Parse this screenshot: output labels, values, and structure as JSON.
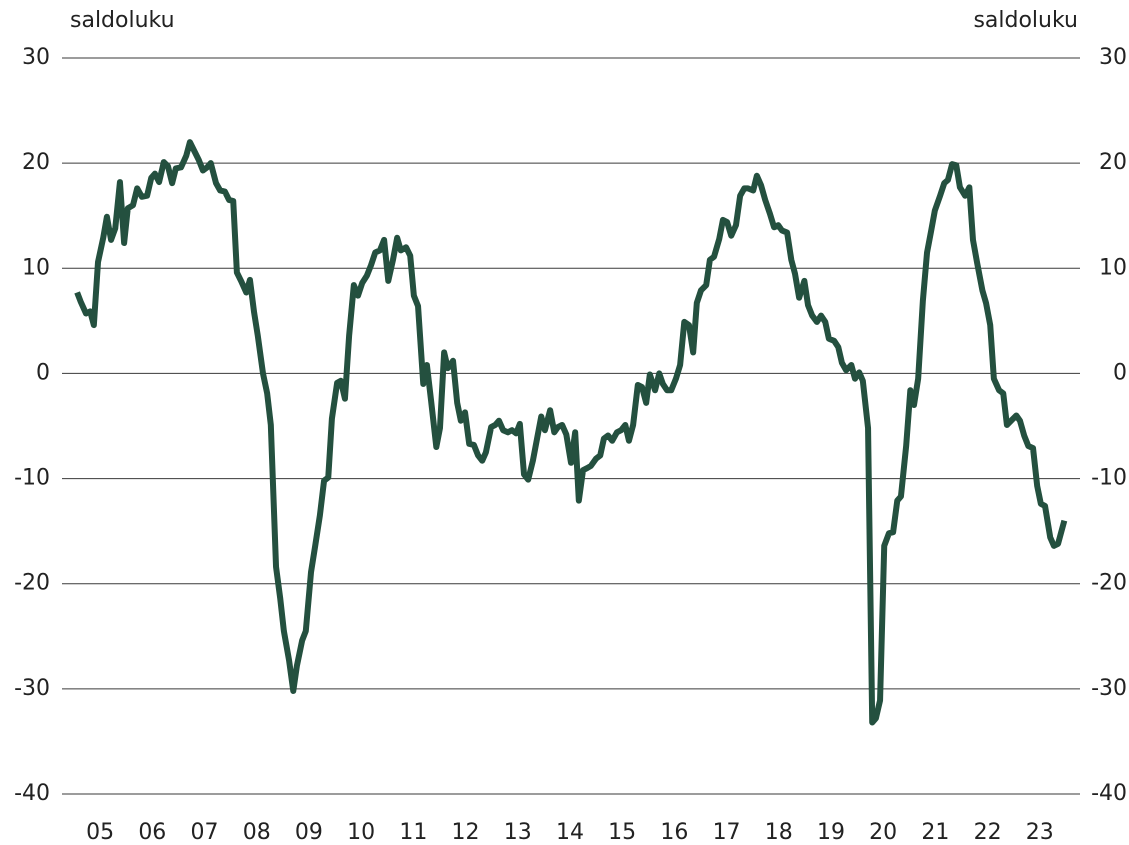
{
  "chart_data": {
    "type": "line",
    "y_label": "saldoluku",
    "y2_label": "saldoluku",
    "color": "#24503f",
    "ylim": [
      -40,
      30
    ],
    "yticks": [
      30,
      20,
      10,
      0,
      -10,
      -20,
      -30,
      -40
    ],
    "y2lim": [
      -40,
      30
    ],
    "y2ticks": [
      30,
      20,
      10,
      0,
      -10,
      -20,
      -30,
      -40
    ],
    "grid": true,
    "xlim": [
      2004.77,
      2024.27
    ],
    "xticks": [
      {
        "value": 2005.5,
        "label": "05"
      },
      {
        "value": 2006.5,
        "label": "06"
      },
      {
        "value": 2007.5,
        "label": "07"
      },
      {
        "value": 2008.5,
        "label": "08"
      },
      {
        "value": 2009.5,
        "label": "09"
      },
      {
        "value": 2010.5,
        "label": "10"
      },
      {
        "value": 2011.5,
        "label": "11"
      },
      {
        "value": 2012.5,
        "label": "12"
      },
      {
        "value": 2013.5,
        "label": "13"
      },
      {
        "value": 2014.5,
        "label": "14"
      },
      {
        "value": 2015.5,
        "label": "15"
      },
      {
        "value": 2016.5,
        "label": "16"
      },
      {
        "value": 2017.5,
        "label": "17"
      },
      {
        "value": 2018.5,
        "label": "18"
      },
      {
        "value": 2019.5,
        "label": "19"
      },
      {
        "value": 2020.5,
        "label": "20"
      },
      {
        "value": 2021.5,
        "label": "21"
      },
      {
        "value": 2022.5,
        "label": "22"
      },
      {
        "value": 2023.5,
        "label": "23"
      }
    ],
    "x": [
      2005.06,
      2005.13,
      2005.23,
      2005.31,
      2005.38,
      2005.46,
      2005.56,
      2005.63,
      2005.71,
      2005.79,
      2005.88,
      2005.96,
      2006.03,
      2006.13,
      2006.21,
      2006.3,
      2006.4,
      2006.48,
      2006.55,
      2006.63,
      2006.72,
      2006.8,
      2006.88,
      2006.95,
      2007.05,
      2007.15,
      2007.22,
      2007.32,
      2007.39,
      2007.47,
      2007.55,
      2007.62,
      2007.72,
      2007.8,
      2007.89,
      2007.97,
      2008.05,
      2008.12,
      2008.2,
      2008.3,
      2008.37,
      2008.45,
      2008.52,
      2008.62,
      2008.7,
      2008.77,
      2008.87,
      2008.95,
      2009.02,
      2009.12,
      2009.2,
      2009.27,
      2009.37,
      2009.44,
      2009.54,
      2009.62,
      2009.71,
      2009.79,
      2009.87,
      2009.94,
      2010.04,
      2010.11,
      2010.19,
      2010.27,
      2010.36,
      2010.44,
      2010.52,
      2010.61,
      2010.69,
      2010.77,
      2010.86,
      2010.94,
      2011.02,
      2011.11,
      2011.19,
      2011.26,
      2011.36,
      2011.44,
      2011.51,
      2011.59,
      2011.69,
      2011.76,
      2011.84,
      2011.94,
      2012.01,
      2012.09,
      2012.16,
      2012.26,
      2012.34,
      2012.41,
      2012.49,
      2012.57,
      2012.66,
      2012.74,
      2012.82,
      2012.89,
      2012.99,
      2013.07,
      2013.14,
      2013.22,
      2013.31,
      2013.39,
      2013.47,
      2013.54,
      2013.62,
      2013.7,
      2013.79,
      2013.87,
      2013.95,
      2014.02,
      2014.12,
      2014.2,
      2014.27,
      2014.35,
      2014.43,
      2014.52,
      2014.6,
      2014.67,
      2014.75,
      2014.83,
      2014.9,
      2015.0,
      2015.08,
      2015.15,
      2015.23,
      2015.31,
      2015.4,
      2015.48,
      2015.56,
      2015.63,
      2015.71,
      2015.8,
      2015.88,
      2015.96,
      2016.03,
      2016.13,
      2016.21,
      2016.28,
      2016.36,
      2016.44,
      2016.53,
      2016.61,
      2016.69,
      2016.78,
      2016.86,
      2016.93,
      2017.01,
      2017.11,
      2017.18,
      2017.26,
      2017.36,
      2017.43,
      2017.51,
      2017.59,
      2017.68,
      2017.76,
      2017.84,
      2017.91,
      2018.01,
      2018.08,
      2018.16,
      2018.24,
      2018.33,
      2018.41,
      2018.49,
      2018.56,
      2018.66,
      2018.74,
      2018.81,
      2018.89,
      2018.99,
      2019.06,
      2019.14,
      2019.23,
      2019.31,
      2019.39,
      2019.46,
      2019.56,
      2019.64,
      2019.71,
      2019.79,
      2019.89,
      2019.96,
      2020.04,
      2020.11,
      2020.21,
      2020.29,
      2020.36,
      2020.44,
      2020.52,
      2020.61,
      2020.69,
      2020.77,
      2020.84,
      2020.94,
      2021.02,
      2021.09,
      2021.17,
      2021.26,
      2021.34,
      2021.42,
      2021.49,
      2021.59,
      2021.67,
      2021.74,
      2021.82,
      2021.9,
      2021.97,
      2022.07,
      2022.15,
      2022.22,
      2022.3,
      2022.4,
      2022.47,
      2022.55,
      2022.62,
      2022.72,
      2022.8,
      2022.87,
      2022.95,
      2023.05,
      2023.12,
      2023.2,
      2023.28,
      2023.37,
      2023.45,
      2023.52,
      2023.6,
      2023.7,
      2023.77,
      2023.85,
      2023.97
    ],
    "values": [
      7.7,
      6.8,
      5.7,
      5.9,
      4.6,
      10.6,
      12.9,
      14.9,
      12.7,
      13.8,
      18.2,
      12.4,
      15.7,
      16.0,
      17.6,
      16.8,
      16.9,
      18.6,
      19.0,
      18.2,
      20.1,
      19.7,
      18.1,
      19.5,
      19.6,
      20.7,
      22.0,
      21.0,
      20.3,
      19.3,
      19.6,
      20.0,
      18.1,
      17.4,
      17.3,
      16.5,
      16.4,
      9.6,
      8.8,
      7.7,
      8.9,
      5.8,
      3.6,
      0,
      -1.9,
      -4.9,
      -18.4,
      -21.4,
      -24.5,
      -27.3,
      -30.2,
      -27.8,
      -25.4,
      -24.5,
      -18.9,
      -16.4,
      -13.5,
      -10.2,
      -9.9,
      -4.3,
      -0.9,
      -0.7,
      -2.4,
      3.6,
      8.4,
      7.4,
      8.6,
      9.3,
      10.3,
      11.5,
      11.7,
      12.7,
      8.8,
      10.8,
      12.9,
      11.7,
      12.0,
      11.2,
      7.4,
      6.4,
      -1.0,
      0.8,
      -2.6,
      -7.0,
      -5.2,
      2.0,
      0.5,
      1.2,
      -2.8,
      -4.5,
      -3.7,
      -6.7,
      -6.8,
      -7.8,
      -8.3,
      -7.5,
      -5.1,
      -4.9,
      -4.5,
      -5.4,
      -5.6,
      -5.4,
      -5.7,
      -4.8,
      -9.6,
      -10.1,
      -8.3,
      -6.2,
      -4.1,
      -5.4,
      -3.5,
      -5.6,
      -5.1,
      -4.9,
      -5.8,
      -8.5,
      -5.6,
      -12.1,
      -9.2,
      -9.0,
      -8.8,
      -8.1,
      -7.8,
      -6.2,
      -5.9,
      -6.4,
      -5.6,
      -5.4,
      -4.9,
      -6.4,
      -4.9,
      -1.1,
      -1.3,
      -2.8,
      -0.1,
      -1.6,
      0.0,
      -1.0,
      -1.6,
      -1.6,
      -0.5,
      0.8,
      4.9,
      4.6,
      2.0,
      6.7,
      7.9,
      8.4,
      10.8,
      11.1,
      12.8,
      14.6,
      14.4,
      13.1,
      14.1,
      16.9,
      17.6,
      17.6,
      17.4,
      18.8,
      17.9,
      16.5,
      15.2,
      13.9,
      14.1,
      13.6,
      13.4,
      10.8,
      9.5,
      7.2,
      8.8,
      6.5,
      5.5,
      4.9,
      5.5,
      4.9,
      3.3,
      3.1,
      2.5,
      1.0,
      0.3,
      0.8,
      -0.5,
      0.1,
      -0.7,
      -5.2,
      -33.2,
      -32.8,
      -31.1,
      -16.4,
      -15.2,
      -15.1,
      -12.1,
      -11.7,
      -6.9,
      -1.6,
      -3.0,
      -0.5,
      6.9,
      11.5,
      13.6,
      15.5,
      16.9,
      18.1,
      18.4,
      19.9,
      19.8,
      17.7,
      16.9,
      17.7,
      12.7,
      10.5,
      7.9,
      6.7,
      4.6,
      -0.5,
      -1.6,
      -1.9,
      -4.9,
      -4.5,
      -4.0,
      -4.5,
      -5.9,
      -6.9,
      -7.1,
      -10.7,
      -12.4,
      -12.6,
      -15.6,
      -16.4,
      -16.2,
      -14.0
    ]
  }
}
